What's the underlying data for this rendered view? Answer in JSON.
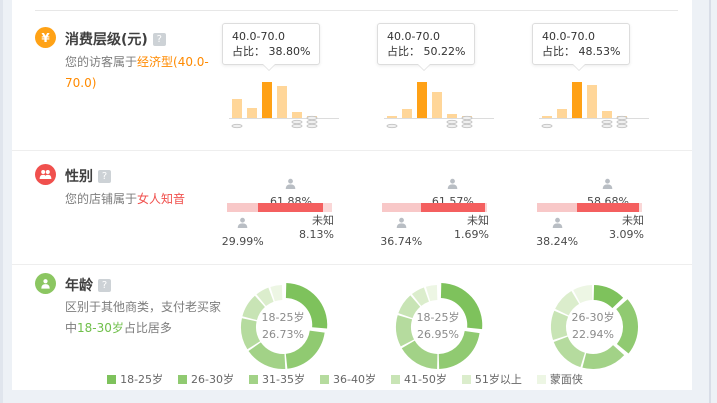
{
  "colors": {
    "consumption_accent": "#ffa116",
    "consumption_bar_light": "#ffd699",
    "gender_accent": "#f0504d",
    "gender_female": "#f45f5f",
    "gender_male": "#f8c8c8",
    "gender_unknown": "#fad7d7",
    "age_accent": "#8bc661",
    "person_icon_gray": "#b9bec4",
    "coin_icon_gray": "#c3c3c3"
  },
  "sections": {
    "consumption": {
      "title": "消费层级(元)",
      "help": "?",
      "desc_prefix": "您的访客属于",
      "desc_highlight": "经济型(40.0-70.0)",
      "tooltip_prefix": "占比："
    },
    "gender": {
      "title": "性别",
      "help": "?",
      "desc_prefix": "您的店铺属于",
      "desc_highlight": "女人知音",
      "unknown_label": "未知"
    },
    "age": {
      "title": "年龄",
      "help": "?",
      "desc_prefix": "区别于其他商类，支付老买家中",
      "desc_highlight": "18-30岁",
      "desc_suffix": "占比居多"
    }
  },
  "chart_data": [
    {
      "type": "bar",
      "group": "consumption-level",
      "note": "3 mini bar charts, 6 price buckets each, highlighted bucket 40.0-70.0",
      "highlight_index": 2,
      "axis_icons": [
        {
          "bar_index": 0,
          "type": "coin-single"
        },
        {
          "bar_index": 4,
          "type": "coin-stack-2"
        },
        {
          "bar_index": 5,
          "type": "coin-stack-3"
        }
      ],
      "charts": [
        {
          "range": "40.0-70.0",
          "share": 38.8,
          "share_text": "38.80%",
          "values": [
            20.0,
            11.0,
            38.8,
            35.0,
            7.0,
            2.5
          ]
        },
        {
          "range": "40.0-70.0",
          "share": 50.22,
          "share_text": "50.22%",
          "values": [
            2.6,
            13.0,
            50.22,
            35.6,
            5.3,
            2.6
          ]
        },
        {
          "range": "40.0-70.0",
          "share": 48.53,
          "share_text": "48.53%",
          "values": [
            2.9,
            11.8,
            48.53,
            44.1,
            8.8,
            2.9
          ]
        }
      ]
    },
    {
      "type": "stacked-bar",
      "group": "gender",
      "categories": [
        "男",
        "女",
        "未知"
      ],
      "charts": [
        {
          "male": 29.99,
          "female": 61.88,
          "unknown": 8.13,
          "male_text": "29.99%",
          "female_text": "61.88%",
          "unknown_text": "8.13%"
        },
        {
          "male": 36.74,
          "female": 61.57,
          "unknown": 1.69,
          "male_text": "36.74%",
          "female_text": "61.57%",
          "unknown_text": "1.69%"
        },
        {
          "male": 38.24,
          "female": 58.68,
          "unknown": 3.09,
          "male_text": "38.24%",
          "female_text": "58.68%",
          "unknown_text": "3.09%"
        }
      ]
    },
    {
      "type": "donut",
      "group": "age",
      "categories": [
        "18-25岁",
        "26-30岁",
        "31-35岁",
        "36-40岁",
        "41-50岁",
        "51岁以上",
        "蒙面侠"
      ],
      "legend": [
        {
          "label": "18-25岁",
          "color": "#7ec25c"
        },
        {
          "label": "26-30岁",
          "color": "#90ca71"
        },
        {
          "label": "31-35岁",
          "color": "#a2d287"
        },
        {
          "label": "36-40岁",
          "color": "#b5db9e"
        },
        {
          "label": "41-50岁",
          "color": "#c8e4b5"
        },
        {
          "label": "51岁以上",
          "color": "#dbedcc"
        },
        {
          "label": "蒙面侠",
          "color": "#edf6e4"
        }
      ],
      "charts": [
        {
          "center_label": "18-25岁",
          "center_value": "26.73%",
          "highlight_index": 0,
          "values": [
            26.73,
            22.0,
            17.0,
            13.0,
            10.0,
            6.0,
            5.27
          ]
        },
        {
          "center_label": "18-25岁",
          "center_value": "26.95%",
          "highlight_index": 0,
          "values": [
            26.95,
            23.0,
            17.0,
            13.0,
            9.0,
            6.0,
            5.05
          ]
        },
        {
          "center_label": "26-30岁",
          "center_value": "22.94%",
          "highlight_index": 1,
          "values": [
            13.0,
            22.94,
            18.0,
            15.0,
            12.0,
            10.0,
            8.12
          ]
        }
      ]
    }
  ]
}
